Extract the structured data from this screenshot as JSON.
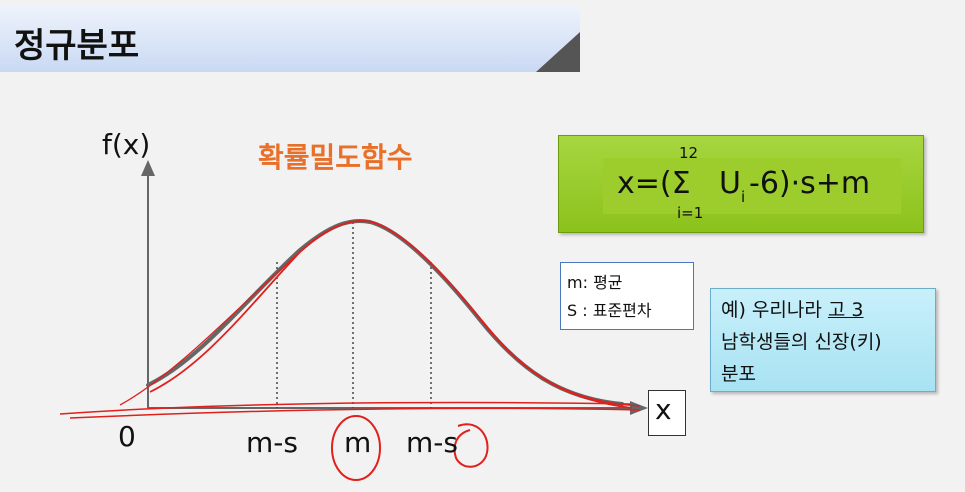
{
  "title": "정규분포",
  "diagram": {
    "pdf_label": "확률밀도함수",
    "y_axis_label": "f(x)",
    "x_axis_label": "x",
    "origin_label": "0",
    "tick_labels": [
      "m-s",
      "m",
      "m-s"
    ]
  },
  "formula": {
    "lhs": "x=(Σ",
    "sum_upper": "12",
    "sum_lower": "i=1",
    "rhs_u": "U",
    "rhs_sub": "i",
    "rhs_rest": "-6)·s+m"
  },
  "legend": {
    "line1": "m: 평균",
    "line2": "S : 표준편차"
  },
  "example": {
    "line1_prefix": "예)  우리나라 ",
    "line1_underlined": "고 3",
    "line2": "남학생들의 신장(키)",
    "line3": "분포"
  },
  "colors": {
    "curve_gray": "#666666",
    "annotation_red": "#e0201c",
    "pdf_label_orange": "#e8702a",
    "formula_green": "#9ccd2d",
    "example_cyan": "#b6e8f6",
    "legend_border": "#4a78c0"
  }
}
